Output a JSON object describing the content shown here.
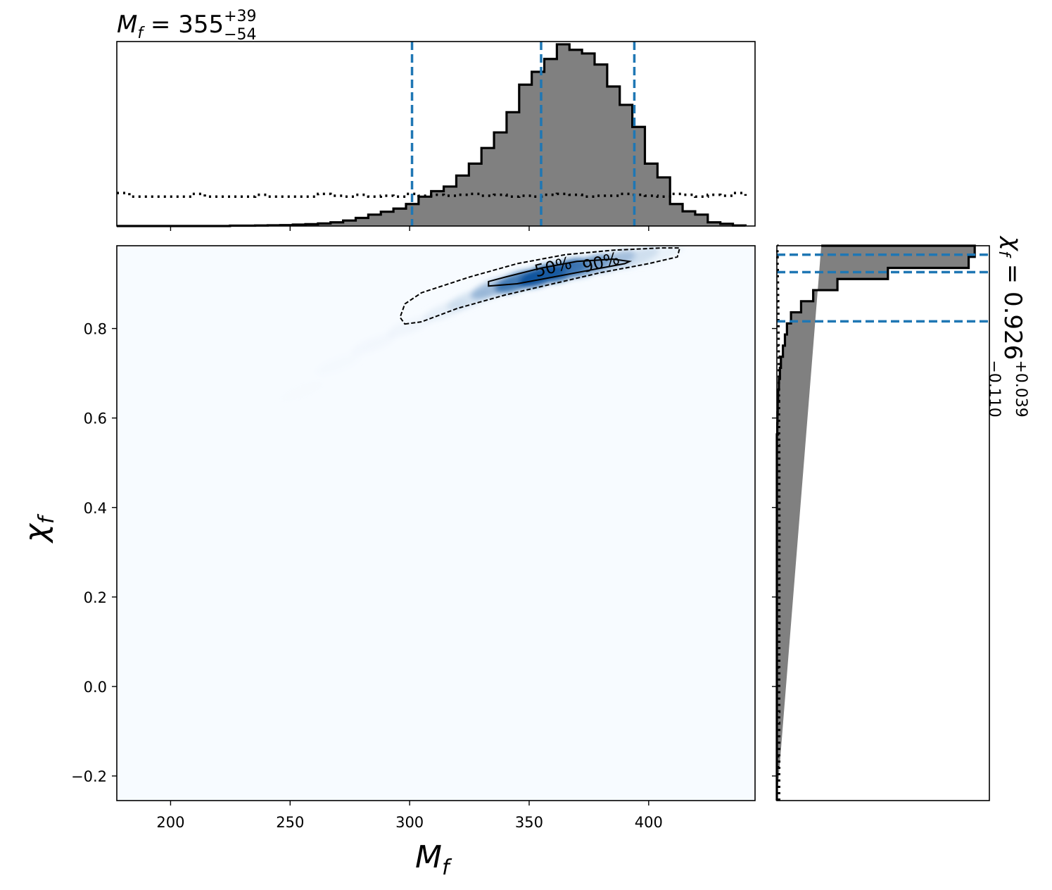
{
  "chart_data": [
    {
      "panel": "top-marginal",
      "type": "histogram",
      "title": {
        "var": "M",
        "sub": "f",
        "eq": " = 355",
        "sup": "+39",
        "subscript": "−54"
      },
      "x_range": [
        177.5,
        444.5
      ],
      "bin_edges": [
        177.5,
        182.76,
        188.02,
        193.28,
        198.54,
        203.8,
        209.06,
        214.32,
        219.58,
        224.84,
        230.1,
        235.36,
        240.62,
        245.88,
        251.14,
        256.4,
        261.66,
        266.92,
        272.18,
        277.44,
        282.7,
        287.96,
        293.22,
        298.48,
        303.74,
        309.0,
        314.26,
        319.52,
        324.78,
        330.04,
        335.3,
        340.56,
        345.82,
        351.08,
        356.34,
        361.6,
        366.86,
        372.12,
        377.38,
        382.64,
        387.9,
        393.16,
        398.42,
        403.68,
        408.94,
        414.2,
        419.46,
        424.72,
        429.98,
        435.24,
        440.5
      ],
      "posterior_density": [
        0,
        0,
        0,
        0,
        0,
        0,
        0,
        0,
        0,
        0.002,
        0.002,
        0.003,
        0.004,
        0.005,
        0.008,
        0.01,
        0.014,
        0.02,
        0.03,
        0.044,
        0.062,
        0.078,
        0.095,
        0.12,
        0.16,
        0.19,
        0.215,
        0.275,
        0.34,
        0.425,
        0.51,
        0.62,
        0.77,
        0.84,
        0.91,
        0.99,
        0.96,
        0.94,
        0.88,
        0.76,
        0.66,
        0.54,
        0.34,
        0.265,
        0.12,
        0.08,
        0.062,
        0.02,
        0.012,
        0.003,
        0
      ],
      "prior_density": [
        0.18,
        0.16,
        0.16,
        0.16,
        0.16,
        0.16,
        0.175,
        0.16,
        0.16,
        0.16,
        0.16,
        0.17,
        0.16,
        0.16,
        0.16,
        0.16,
        0.175,
        0.165,
        0.16,
        0.17,
        0.16,
        0.165,
        0.16,
        0.175,
        0.165,
        0.17,
        0.165,
        0.17,
        0.175,
        0.165,
        0.17,
        0.16,
        0.165,
        0.16,
        0.17,
        0.175,
        0.17,
        0.16,
        0.165,
        0.165,
        0.175,
        0.17,
        0.165,
        0.16,
        0.175,
        0.17,
        0.16,
        0.17,
        0.165,
        0.18,
        0.165
      ],
      "quantile_lines": [
        301,
        355,
        394
      ],
      "xticks": [
        200,
        250,
        300,
        350,
        400
      ],
      "colors": {
        "fill": "#808080",
        "edge": "#000000",
        "quantile": "#1f77b4"
      }
    },
    {
      "panel": "joint",
      "type": "heatmap",
      "xlabel": {
        "var": "M",
        "sub": "f"
      },
      "ylabel": {
        "var": "χ",
        "sub": "f"
      },
      "x_range": [
        177.5,
        444.5
      ],
      "y_range": [
        -0.255,
        0.985
      ],
      "xtick_values": [
        200,
        250,
        300,
        350,
        400
      ],
      "xtick_labels": [
        "200",
        "250",
        "300",
        "350",
        "400"
      ],
      "ytick_values": [
        -0.2,
        0.0,
        0.2,
        0.4,
        0.6,
        0.8
      ],
      "ytick_labels": [
        "−0.2",
        "0.0",
        "0.2",
        "0.4",
        "0.6",
        "0.8"
      ],
      "colormap": "Blues",
      "density_ridge": [
        {
          "x": 255,
          "y": 0.66,
          "w": 0.02
        },
        {
          "x": 270,
          "y": 0.72,
          "w": 0.04
        },
        {
          "x": 285,
          "y": 0.765,
          "w": 0.07
        },
        {
          "x": 300,
          "y": 0.805,
          "w": 0.1
        },
        {
          "x": 315,
          "y": 0.84,
          "w": 0.18
        },
        {
          "x": 325,
          "y": 0.865,
          "w": 0.3
        },
        {
          "x": 335,
          "y": 0.89,
          "w": 0.55
        },
        {
          "x": 345,
          "y": 0.905,
          "w": 0.85
        },
        {
          "x": 355,
          "y": 0.918,
          "w": 1.0
        },
        {
          "x": 365,
          "y": 0.93,
          "w": 0.95
        },
        {
          "x": 375,
          "y": 0.94,
          "w": 0.75
        },
        {
          "x": 385,
          "y": 0.95,
          "w": 0.55
        },
        {
          "x": 395,
          "y": 0.958,
          "w": 0.35
        },
        {
          "x": 405,
          "y": 0.965,
          "w": 0.15
        }
      ],
      "contour_90": [
        [
          298,
          0.81
        ],
        [
          305,
          0.815
        ],
        [
          320,
          0.845
        ],
        [
          340,
          0.875
        ],
        [
          360,
          0.9
        ],
        [
          380,
          0.925
        ],
        [
          400,
          0.945
        ],
        [
          412,
          0.96
        ],
        [
          413,
          0.98
        ],
        [
          405,
          0.98
        ],
        [
          385,
          0.975
        ],
        [
          365,
          0.965
        ],
        [
          345,
          0.945
        ],
        [
          325,
          0.915
        ],
        [
          305,
          0.88
        ],
        [
          298,
          0.855
        ],
        [
          296,
          0.825
        ],
        [
          298,
          0.81
        ]
      ],
      "contour_50": [
        [
          333,
          0.895
        ],
        [
          345,
          0.9
        ],
        [
          360,
          0.915
        ],
        [
          375,
          0.93
        ],
        [
          390,
          0.945
        ],
        [
          392,
          0.95
        ],
        [
          385,
          0.955
        ],
        [
          370,
          0.95
        ],
        [
          355,
          0.935
        ],
        [
          340,
          0.915
        ],
        [
          333,
          0.905
        ],
        [
          333,
          0.895
        ]
      ],
      "contour_labels": [
        {
          "text": "50%",
          "x": 353,
          "y": 0.915,
          "angle": 14
        },
        {
          "text": "90%",
          "x": 373,
          "y": 0.925,
          "angle": 14
        }
      ]
    },
    {
      "panel": "right-marginal",
      "type": "histogram",
      "orientation": "horizontal",
      "title": {
        "var": "χ",
        "sub": "f",
        "eq": " = 0.926",
        "sup": "+0.039",
        "subscript": "−0.110"
      },
      "y_range": [
        -0.255,
        0.985
      ],
      "bin_edges": [
        -0.255,
        -0.2302,
        -0.2054,
        -0.1806,
        -0.1558,
        -0.131,
        -0.1062,
        -0.0814,
        -0.0566,
        -0.0318,
        -0.007,
        0.0178,
        0.0426,
        0.0674,
        0.0922,
        0.117,
        0.1418,
        0.1666,
        0.1914,
        0.2162,
        0.241,
        0.2658,
        0.2906,
        0.3154,
        0.3402,
        0.365,
        0.3898,
        0.4146,
        0.4394,
        0.4642,
        0.489,
        0.5138,
        0.5386,
        0.5634,
        0.5882,
        0.613,
        0.6378,
        0.6626,
        0.6874,
        0.7122,
        0.737,
        0.7618,
        0.7866,
        0.8114,
        0.8362,
        0.861,
        0.8858,
        0.9106,
        0.9354,
        0.9602,
        0.985
      ],
      "posterior_density": [
        0,
        0,
        0,
        0,
        0,
        0,
        0,
        0,
        0,
        0,
        0,
        0,
        0,
        0,
        0,
        0,
        0,
        0,
        0,
        0,
        0,
        0,
        0,
        0,
        0,
        0,
        0,
        0,
        0,
        0,
        0,
        0,
        0,
        0.002,
        0.003,
        0.004,
        0.006,
        0.01,
        0.015,
        0.02,
        0.03,
        0.04,
        0.05,
        0.07,
        0.12,
        0.18,
        0.3,
        0.55,
        0.95,
        0.98,
        0.22
      ],
      "prior_density": [
        0.034,
        0.034,
        0.034,
        0.035,
        0.034,
        0.035,
        0.035,
        0.034,
        0.036,
        0.035,
        0.035,
        0.036,
        0.035,
        0.036,
        0.036,
        0.036,
        0.037,
        0.036,
        0.037,
        0.037,
        0.036,
        0.037,
        0.037,
        0.038,
        0.038,
        0.037,
        0.037,
        0.036,
        0.036,
        0.036,
        0.036,
        0.035,
        0.034,
        0.033,
        0.032,
        0.032,
        0.031,
        0.03,
        0.029,
        0.028,
        0.027,
        0.026,
        0.024,
        0.022,
        0.02,
        0.018,
        0.016,
        0.013,
        0.01,
        0.008,
        0.005
      ],
      "quantile_lines": [
        0.816,
        0.926,
        0.965
      ],
      "colors": {
        "fill": "#808080",
        "edge": "#000000",
        "quantile": "#1f77b4"
      }
    }
  ]
}
